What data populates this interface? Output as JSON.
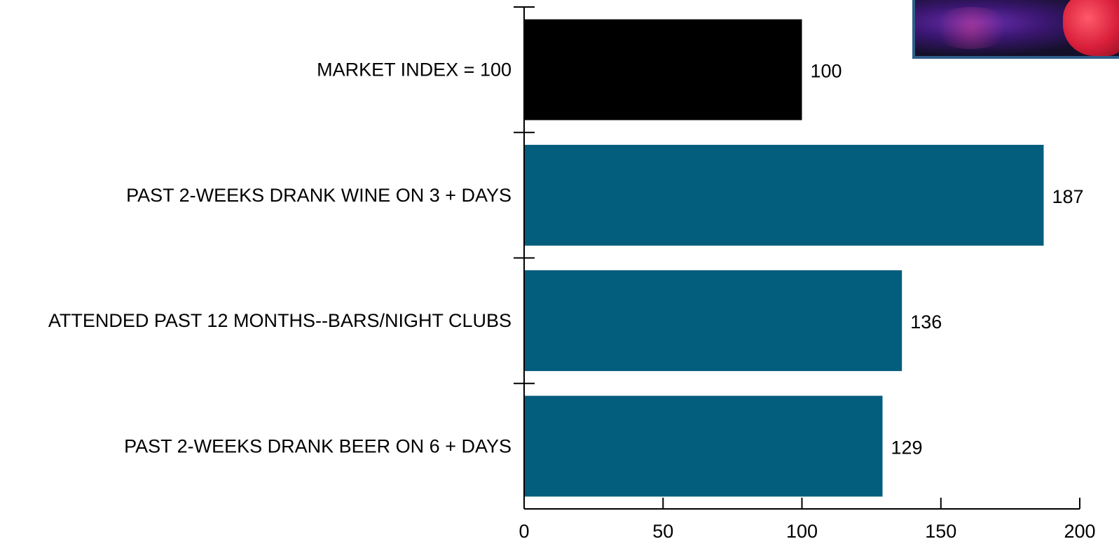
{
  "chart_data": {
    "type": "bar",
    "orientation": "horizontal",
    "categories": [
      "MARKET INDEX = 100",
      "PAST 2-WEEKS DRANK WINE ON 3 + DAYS",
      "ATTENDED PAST 12 MONTHS--BARS/NIGHT CLUBS",
      "PAST 2-WEEKS DRANK BEER ON 6 + DAYS"
    ],
    "values": [
      100,
      187,
      136,
      129
    ],
    "value_labels": [
      "100",
      "187",
      "136",
      "129"
    ],
    "bar_colors": [
      "#000000",
      "#035d7d",
      "#035d7d",
      "#035d7d"
    ],
    "xlim": [
      0,
      200
    ],
    "xticks": [
      0,
      50,
      100,
      150,
      200
    ],
    "xtick_labels": [
      "0",
      "50",
      "100",
      "150",
      "200"
    ],
    "title": "",
    "xlabel": "",
    "ylabel": "",
    "grid": false,
    "legend": "none"
  },
  "photo": {
    "icon": "nightclub-photo"
  }
}
